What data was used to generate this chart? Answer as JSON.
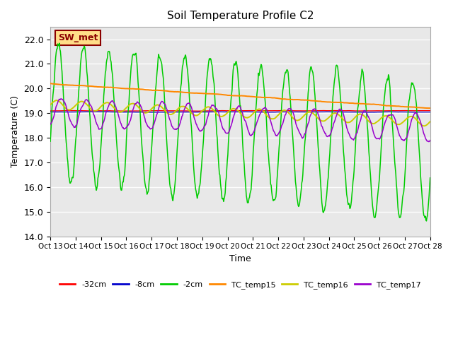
{
  "title": "Soil Temperature Profile C2",
  "xlabel": "Time",
  "ylabel": "Temperature (C)",
  "ylim": [
    14.0,
    22.5
  ],
  "yticks": [
    14.0,
    15.0,
    16.0,
    17.0,
    18.0,
    19.0,
    20.0,
    21.0,
    22.0
  ],
  "xtick_positions": [
    0,
    1,
    2,
    3,
    4,
    5,
    6,
    7,
    8,
    9,
    10,
    11,
    12,
    13,
    14,
    15
  ],
  "xtick_labels": [
    "Oct 13",
    "Oct 14",
    "Oct 15",
    "Oct 16",
    "Oct 17",
    "Oct 18",
    "Oct 19",
    "Oct 20",
    "Oct 21",
    "Oct 22",
    "Oct 23",
    "Oct 24",
    "Oct 25",
    "Oct 26",
    "Oct 27",
    "Oct 28"
  ],
  "watermark": "SW_met",
  "bg_color": "#e8e8e8",
  "series_colors": {
    "minus32cm": "#ff0000",
    "minus8cm": "#0000cc",
    "minus2cm": "#00cc00",
    "TC_temp15": "#ff8800",
    "TC_temp16": "#cccc00",
    "TC_temp17": "#9900cc"
  },
  "legend_labels": [
    "-32cm",
    "-8cm",
    "-2cm",
    "TC_temp15",
    "TC_temp16",
    "TC_temp17"
  ]
}
